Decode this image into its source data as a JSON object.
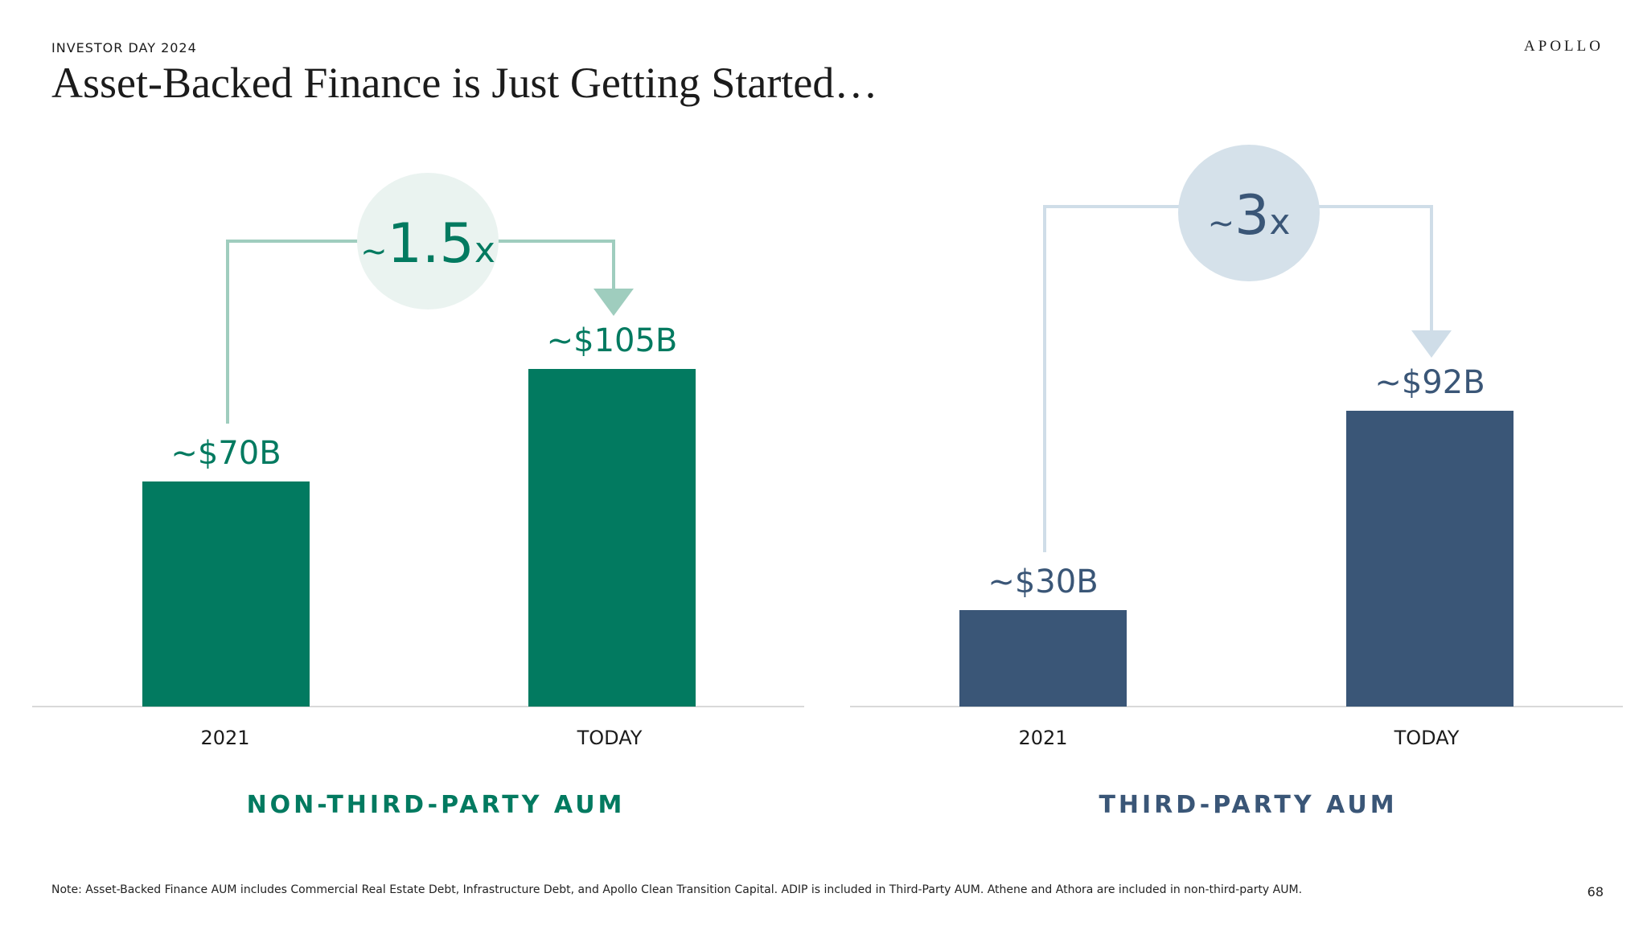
{
  "header": {
    "eyebrow": "INVESTOR DAY 2024",
    "logo": "APOLLO",
    "title": "Asset-Backed Finance is Just Getting Started…"
  },
  "colors": {
    "green": "#027a60",
    "green_light": "#9fcdbe",
    "green_bubble": "#eaf3f0",
    "navy": "#3a5677",
    "navy_light": "#cfdde8",
    "navy_bubble": "#d5e1ea",
    "axis": "#d9d9d9"
  },
  "chart_data": [
    {
      "type": "bar",
      "title": "NON-THIRD-PARTY AUM",
      "categories": [
        "2021",
        "TODAY"
      ],
      "values": [
        70,
        105
      ],
      "unit": "$B",
      "data_labels": [
        "~$70B",
        "~$105B"
      ],
      "multiplier_label": {
        "prefix": "~",
        "number": "1.5",
        "suffix": "x"
      },
      "ylim": [
        0,
        135
      ],
      "color_key": "green"
    },
    {
      "type": "bar",
      "title": "THIRD-PARTY AUM",
      "categories": [
        "2021",
        "TODAY"
      ],
      "values": [
        30,
        92
      ],
      "unit": "$B",
      "data_labels": [
        "~$30B",
        "~$92B"
      ],
      "multiplier_label": {
        "prefix": "~",
        "number": "3",
        "suffix": "x"
      },
      "ylim": [
        0,
        135
      ],
      "color_key": "navy"
    }
  ],
  "footer": {
    "note": "Note: Asset-Backed Finance AUM includes Commercial Real Estate Debt, Infrastructure Debt, and Apollo Clean Transition Capital. ADIP is included in Third-Party AUM. Athene and Athora are included in non-third-party AUM.",
    "page_number": "68"
  }
}
